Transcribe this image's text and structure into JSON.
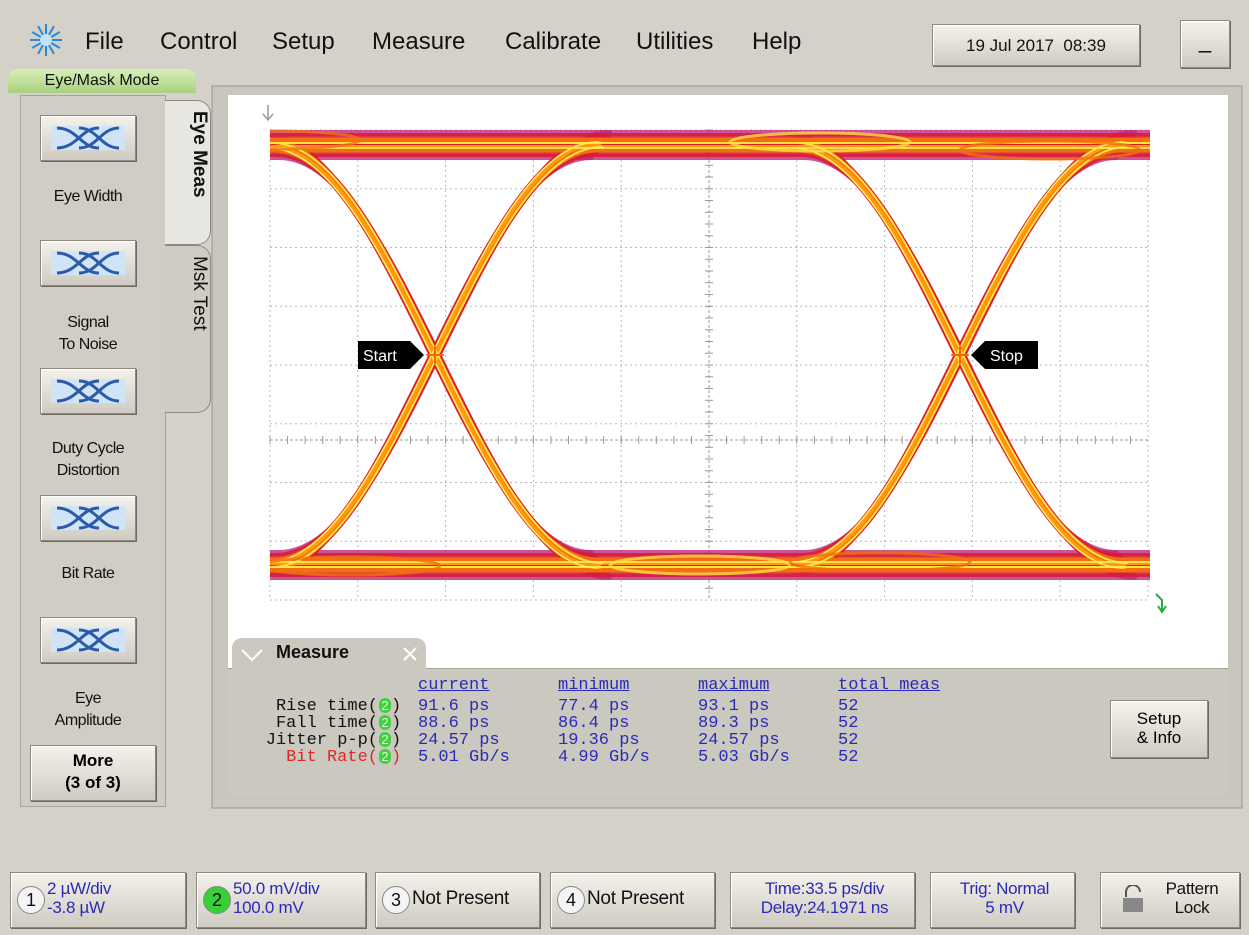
{
  "menu": {
    "items": [
      "File",
      "Control",
      "Setup",
      "Measure",
      "Calibrate",
      "Utilities",
      "Help"
    ],
    "datetime": "19 Jul 2017  08:39",
    "minimize": "_"
  },
  "mode": "Eye/Mask Mode",
  "tabs": [
    "Eye Meas",
    "Msk Test"
  ],
  "buttons": [
    [
      "Eye Width"
    ],
    [
      "Signal",
      "To Noise"
    ],
    [
      "Duty Cycle",
      "Distortion"
    ],
    [
      "Bit Rate"
    ],
    [
      "Eye",
      "Amplitude"
    ]
  ],
  "more": [
    "More",
    "(3 of 3)"
  ],
  "markers": {
    "start": "Start",
    "stop": "Stop"
  },
  "measure": {
    "title": "Measure",
    "headers": [
      "current",
      "minimum",
      "maximum",
      "total meas"
    ],
    "rows": [
      {
        "label": "Rise time(",
        "channel": "2",
        "close": ")",
        "values": [
          "91.6 ps",
          "77.4 ps",
          "93.1 ps",
          "52"
        ]
      },
      {
        "label": "Fall time(",
        "channel": "2",
        "close": ")",
        "values": [
          "88.6 ps",
          "86.4 ps",
          "89.3 ps",
          "52"
        ]
      },
      {
        "label": "Jitter p-p(",
        "channel": "2",
        "close": ")",
        "values": [
          "24.57 ps",
          "19.36 ps",
          "24.57 ps",
          "52"
        ]
      },
      {
        "label": "Bit Rate(",
        "channel": "2",
        "close": ")",
        "color": "#e02828",
        "values": [
          "5.01 Gb/s",
          "4.99 Gb/s",
          "5.03 Gb/s",
          "52"
        ]
      }
    ],
    "setup": [
      "Setup",
      "& Info"
    ]
  },
  "status": [
    {
      "channel": "1",
      "lines": [
        "2 µW/div",
        "-3.8 µW"
      ]
    },
    {
      "channel": "2",
      "lines": [
        "50.0 mV/div",
        "100.0 mV"
      ]
    },
    {
      "channel": "3",
      "lines": [
        "Not Present"
      ]
    },
    {
      "channel": "4",
      "lines": [
        "Not Present"
      ]
    },
    {
      "lines": [
        "Time:33.5 ps/div",
        "Delay:24.1971 ns"
      ]
    },
    {
      "lines": [
        "Trig: Normal",
        "5 mV"
      ]
    },
    {
      "lines": [
        "Pattern",
        "Lock"
      ]
    }
  ]
}
